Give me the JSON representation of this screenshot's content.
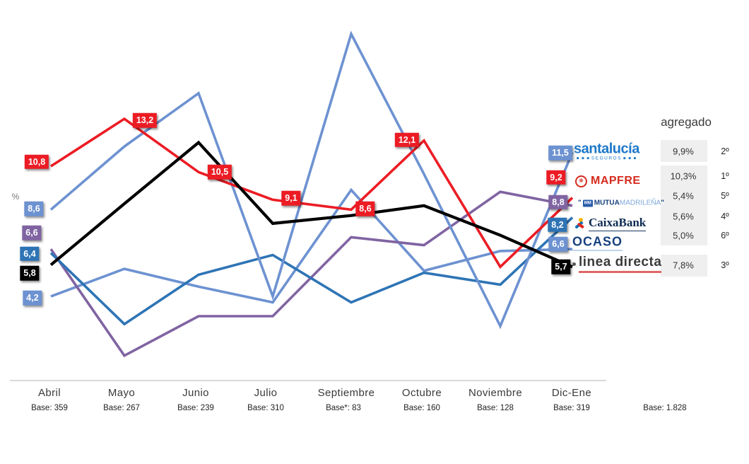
{
  "chart_data": {
    "type": "line",
    "title": "",
    "ylabel": "%",
    "x_categories": [
      "Abril",
      "Mayo",
      "Junio",
      "Julio",
      "Septiembre",
      "Octubre",
      "Noviembre",
      "Dic-Ene"
    ],
    "x_bases": [
      "Base: 359",
      "Base: 267",
      "Base: 239",
      "Base: 310",
      "Base*: 83",
      "Base: 160",
      "Base: 128",
      "Base: 319"
    ],
    "aggregate_header": "agregado",
    "aggregate_base": "Base: 1.828",
    "ylim": [
      0,
      18
    ],
    "grid": false,
    "legend_position": "right",
    "series": [
      {
        "key": "santalucia",
        "brand": "santalucía",
        "brand_sub": "SEGUROS",
        "color": "#6d92d1",
        "values": [
          8.6,
          11.8,
          14.5,
          4.2,
          17.5,
          10.4,
          2.7,
          11.5
        ],
        "first_label": "8,6",
        "last_label": "11,5",
        "aggregate_pct": "9,9%",
        "aggregate_rank": "2º"
      },
      {
        "key": "mapfre",
        "brand": "MAPFRE",
        "color": "#ec1c24",
        "values": [
          10.8,
          13.2,
          10.5,
          9.1,
          8.6,
          12.1,
          5.7,
          9.2
        ],
        "first_label": "10,8",
        "last_label": "9,2",
        "point_labels": [
          {
            "i": 1,
            "text": "13,2"
          },
          {
            "i": 2,
            "text": "10,5"
          },
          {
            "i": 3,
            "text": "9,1"
          },
          {
            "i": 4,
            "text": "8,6"
          },
          {
            "i": 5,
            "text": "12,1"
          }
        ],
        "aggregate_pct": "10,3%",
        "aggregate_rank": "1º"
      },
      {
        "key": "mutua",
        "brand": "MUTUA",
        "brand2": "MADRILEÑA",
        "color": "#8064a2",
        "values": [
          6.6,
          1.2,
          3.2,
          3.2,
          7.2,
          6.8,
          9.5,
          8.8
        ],
        "first_label": "6,6",
        "last_label": "8,8",
        "aggregate_pct": "5,4%",
        "aggregate_rank": "5º"
      },
      {
        "key": "caixabank",
        "brand": "CaixaBank",
        "color": "#2e74b5",
        "values": [
          6.4,
          2.8,
          5.3,
          6.3,
          3.9,
          5.4,
          4.8,
          8.2
        ],
        "first_label": "6,4",
        "last_label": "8,2",
        "aggregate_pct": "5,6%",
        "aggregate_rank": "4º"
      },
      {
        "key": "ocaso",
        "brand": "OCASO",
        "color": "#6d92d1",
        "values": [
          4.2,
          5.6,
          4.7,
          3.9,
          9.6,
          5.5,
          6.5,
          6.6
        ],
        "first_label": "4,2",
        "last_label": "6,6",
        "aggregate_pct": "5,0%",
        "aggregate_rank": "6º"
      },
      {
        "key": "linea_directa",
        "brand": "linea directa",
        "color": "#000000",
        "values": [
          5.8,
          8.9,
          12.0,
          7.9,
          8.3,
          8.8,
          7.3,
          5.7
        ],
        "first_label": "5,8",
        "last_label": "5,7",
        "aggregate_pct": "7,8%",
        "aggregate_rank": "3º"
      }
    ]
  }
}
